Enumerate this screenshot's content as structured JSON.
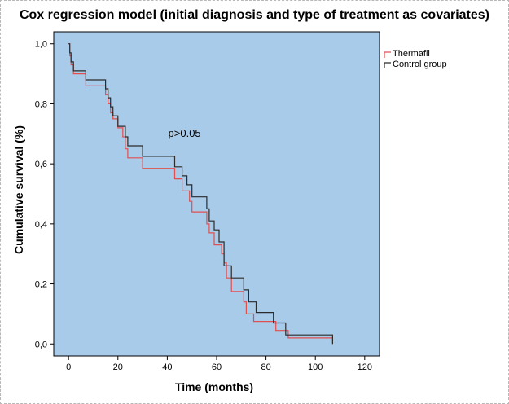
{
  "chart_data": {
    "type": "line",
    "step": true,
    "title": "Cox regression model (initial diagnosis and type of treatment as covariates)",
    "xlabel": "Time (months)",
    "ylabel": "Cumulative survival (%)",
    "xlim": [
      -6,
      126
    ],
    "ylim": [
      -0.04,
      1.04
    ],
    "xticks": [
      0,
      20,
      40,
      60,
      80,
      100,
      120
    ],
    "yticks": [
      0.0,
      0.2,
      0.4,
      0.6,
      0.8,
      1.0
    ],
    "ytick_labels": [
      "0,0",
      "0,2",
      "0,4",
      "0,6",
      "0,8",
      "1,0"
    ],
    "grid": false,
    "plot_background": "#a9cbea",
    "legend_placement": "outside-right",
    "annotation": {
      "text": "p>0.05",
      "x": 47,
      "y": 0.69
    },
    "series": [
      {
        "name": "Thermafil",
        "color": "#e05050",
        "x": [
          0,
          0.5,
          1,
          2,
          7,
          15,
          16,
          17,
          18,
          20,
          22,
          23,
          24,
          30,
          43,
          46,
          49,
          50,
          56,
          57,
          59,
          62,
          63,
          64,
          66,
          71,
          72,
          75,
          84,
          89,
          107
        ],
        "y": [
          1.0,
          0.96,
          0.93,
          0.9,
          0.86,
          0.83,
          0.8,
          0.77,
          0.75,
          0.72,
          0.69,
          0.65,
          0.62,
          0.585,
          0.55,
          0.51,
          0.475,
          0.44,
          0.4,
          0.37,
          0.33,
          0.3,
          0.27,
          0.22,
          0.175,
          0.14,
          0.1,
          0.075,
          0.045,
          0.02,
          0.0
        ]
      },
      {
        "name": "Control group",
        "color": "#2b2b2b",
        "x": [
          0,
          0.5,
          1,
          2,
          7,
          15,
          16,
          17,
          18,
          20,
          23,
          24,
          30,
          43,
          46,
          48,
          50,
          56,
          57,
          59,
          61,
          63,
          66,
          71,
          73,
          76,
          83,
          88,
          107
        ],
        "y": [
          1.0,
          0.97,
          0.94,
          0.91,
          0.88,
          0.85,
          0.82,
          0.79,
          0.76,
          0.725,
          0.69,
          0.66,
          0.625,
          0.59,
          0.56,
          0.53,
          0.49,
          0.45,
          0.41,
          0.38,
          0.34,
          0.26,
          0.22,
          0.18,
          0.14,
          0.105,
          0.07,
          0.03,
          0.0
        ]
      }
    ]
  }
}
